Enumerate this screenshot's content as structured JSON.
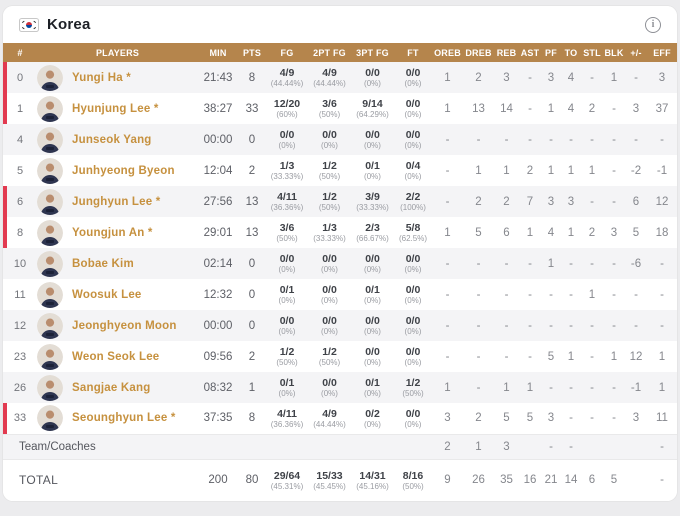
{
  "header": {
    "team": "Korea",
    "flag_icon": "south-korea-flag",
    "info_label": "i"
  },
  "colors": {
    "table_header_bg": "#b5854c",
    "starter_accent": "#e23a50",
    "player_name": "#c6913f",
    "row_alt_bg": "#f4f4f6"
  },
  "table": {
    "columns": [
      "#",
      "PLAYERS",
      "MIN",
      "PTS",
      "FG",
      "2PT FG",
      "3PT FG",
      "FT",
      "OREB",
      "DREB",
      "REB",
      "AST",
      "PF",
      "TO",
      "STL",
      "BLK",
      "+/-",
      "EFF"
    ],
    "players": [
      {
        "num": "0",
        "name": "Yungi Ha *",
        "starter": true,
        "min": "21:43",
        "pts": "8",
        "fg": "4/9",
        "fg_pct": "(44.44%)",
        "fg2": "4/9",
        "fg2_pct": "(44.44%)",
        "fg3": "0/0",
        "fg3_pct": "(0%)",
        "ft": "0/0",
        "ft_pct": "(0%)",
        "oreb": "1",
        "dreb": "2",
        "reb": "3",
        "ast": "-",
        "pf": "3",
        "to": "4",
        "stl": "-",
        "blk": "1",
        "pm": "-",
        "eff": "3"
      },
      {
        "num": "1",
        "name": "Hyunjung Lee *",
        "starter": true,
        "min": "38:27",
        "pts": "33",
        "fg": "12/20",
        "fg_pct": "(60%)",
        "fg2": "3/6",
        "fg2_pct": "(50%)",
        "fg3": "9/14",
        "fg3_pct": "(64.29%)",
        "ft": "0/0",
        "ft_pct": "(0%)",
        "oreb": "1",
        "dreb": "13",
        "reb": "14",
        "ast": "-",
        "pf": "1",
        "to": "4",
        "stl": "2",
        "blk": "-",
        "pm": "3",
        "eff": "37"
      },
      {
        "num": "4",
        "name": "Junseok Yang",
        "starter": false,
        "min": "00:00",
        "pts": "0",
        "fg": "0/0",
        "fg_pct": "(0%)",
        "fg2": "0/0",
        "fg2_pct": "(0%)",
        "fg3": "0/0",
        "fg3_pct": "(0%)",
        "ft": "0/0",
        "ft_pct": "(0%)",
        "oreb": "-",
        "dreb": "-",
        "reb": "-",
        "ast": "-",
        "pf": "-",
        "to": "-",
        "stl": "-",
        "blk": "-",
        "pm": "-",
        "eff": "-"
      },
      {
        "num": "5",
        "name": "Junhyeong Byeon",
        "starter": false,
        "min": "12:04",
        "pts": "2",
        "fg": "1/3",
        "fg_pct": "(33.33%)",
        "fg2": "1/2",
        "fg2_pct": "(50%)",
        "fg3": "0/1",
        "fg3_pct": "(0%)",
        "ft": "0/4",
        "ft_pct": "(0%)",
        "oreb": "-",
        "dreb": "1",
        "reb": "1",
        "ast": "2",
        "pf": "1",
        "to": "1",
        "stl": "1",
        "blk": "-",
        "pm": "-2",
        "eff": "-1"
      },
      {
        "num": "6",
        "name": "Junghyun Lee *",
        "starter": true,
        "min": "27:56",
        "pts": "13",
        "fg": "4/11",
        "fg_pct": "(36.36%)",
        "fg2": "1/2",
        "fg2_pct": "(50%)",
        "fg3": "3/9",
        "fg3_pct": "(33.33%)",
        "ft": "2/2",
        "ft_pct": "(100%)",
        "oreb": "-",
        "dreb": "2",
        "reb": "2",
        "ast": "7",
        "pf": "3",
        "to": "3",
        "stl": "-",
        "blk": "-",
        "pm": "6",
        "eff": "12"
      },
      {
        "num": "8",
        "name": "Youngjun An *",
        "starter": true,
        "min": "29:01",
        "pts": "13",
        "fg": "3/6",
        "fg_pct": "(50%)",
        "fg2": "1/3",
        "fg2_pct": "(33.33%)",
        "fg3": "2/3",
        "fg3_pct": "(66.67%)",
        "ft": "5/8",
        "ft_pct": "(62.5%)",
        "oreb": "1",
        "dreb": "5",
        "reb": "6",
        "ast": "1",
        "pf": "4",
        "to": "1",
        "stl": "2",
        "blk": "3",
        "pm": "5",
        "eff": "18"
      },
      {
        "num": "10",
        "name": "Bobae Kim",
        "starter": false,
        "min": "02:14",
        "pts": "0",
        "fg": "0/0",
        "fg_pct": "(0%)",
        "fg2": "0/0",
        "fg2_pct": "(0%)",
        "fg3": "0/0",
        "fg3_pct": "(0%)",
        "ft": "0/0",
        "ft_pct": "(0%)",
        "oreb": "-",
        "dreb": "-",
        "reb": "-",
        "ast": "-",
        "pf": "1",
        "to": "-",
        "stl": "-",
        "blk": "-",
        "pm": "-6",
        "eff": "-"
      },
      {
        "num": "11",
        "name": "Woosuk Lee",
        "starter": false,
        "min": "12:32",
        "pts": "0",
        "fg": "0/1",
        "fg_pct": "(0%)",
        "fg2": "0/0",
        "fg2_pct": "(0%)",
        "fg3": "0/1",
        "fg3_pct": "(0%)",
        "ft": "0/0",
        "ft_pct": "(0%)",
        "oreb": "-",
        "dreb": "-",
        "reb": "-",
        "ast": "-",
        "pf": "-",
        "to": "-",
        "stl": "1",
        "blk": "-",
        "pm": "-",
        "eff": "-"
      },
      {
        "num": "12",
        "name": "Jeonghyeon Moon",
        "starter": false,
        "min": "00:00",
        "pts": "0",
        "fg": "0/0",
        "fg_pct": "(0%)",
        "fg2": "0/0",
        "fg2_pct": "(0%)",
        "fg3": "0/0",
        "fg3_pct": "(0%)",
        "ft": "0/0",
        "ft_pct": "(0%)",
        "oreb": "-",
        "dreb": "-",
        "reb": "-",
        "ast": "-",
        "pf": "-",
        "to": "-",
        "stl": "-",
        "blk": "-",
        "pm": "-",
        "eff": "-"
      },
      {
        "num": "23",
        "name": "Weon Seok Lee",
        "starter": false,
        "min": "09:56",
        "pts": "2",
        "fg": "1/2",
        "fg_pct": "(50%)",
        "fg2": "1/2",
        "fg2_pct": "(50%)",
        "fg3": "0/0",
        "fg3_pct": "(0%)",
        "ft": "0/0",
        "ft_pct": "(0%)",
        "oreb": "-",
        "dreb": "-",
        "reb": "-",
        "ast": "-",
        "pf": "5",
        "to": "1",
        "stl": "-",
        "blk": "1",
        "pm": "12",
        "eff": "1"
      },
      {
        "num": "26",
        "name": "Sangjae Kang",
        "starter": false,
        "min": "08:32",
        "pts": "1",
        "fg": "0/1",
        "fg_pct": "(0%)",
        "fg2": "0/0",
        "fg2_pct": "(0%)",
        "fg3": "0/1",
        "fg3_pct": "(0%)",
        "ft": "1/2",
        "ft_pct": "(50%)",
        "oreb": "1",
        "dreb": "-",
        "reb": "1",
        "ast": "1",
        "pf": "-",
        "to": "-",
        "stl": "-",
        "blk": "-",
        "pm": "-1",
        "eff": "1"
      },
      {
        "num": "33",
        "name": "Seounghyun Lee *",
        "starter": true,
        "min": "37:35",
        "pts": "8",
        "fg": "4/11",
        "fg_pct": "(36.36%)",
        "fg2": "4/9",
        "fg2_pct": "(44.44%)",
        "fg3": "0/2",
        "fg3_pct": "(0%)",
        "ft": "0/0",
        "ft_pct": "(0%)",
        "oreb": "3",
        "dreb": "2",
        "reb": "5",
        "ast": "5",
        "pf": "3",
        "to": "-",
        "stl": "-",
        "blk": "-",
        "pm": "3",
        "eff": "11"
      }
    ],
    "team_coaches": {
      "label": "Team/Coaches",
      "oreb": "2",
      "dreb": "1",
      "reb": "3",
      "ast": "",
      "pf": "-",
      "to": "-",
      "stl": "",
      "blk": "",
      "pm": "",
      "eff": "-"
    },
    "total": {
      "label": "TOTAL",
      "min": "200",
      "pts": "80",
      "fg": "29/64",
      "fg_pct": "(45.31%)",
      "fg2": "15/33",
      "fg2_pct": "(45.45%)",
      "fg3": "14/31",
      "fg3_pct": "(45.16%)",
      "ft": "8/16",
      "ft_pct": "(50%)",
      "oreb": "9",
      "dreb": "26",
      "reb": "35",
      "ast": "16",
      "pf": "21",
      "to": "14",
      "stl": "6",
      "blk": "5",
      "pm": "",
      "eff": "-"
    }
  }
}
